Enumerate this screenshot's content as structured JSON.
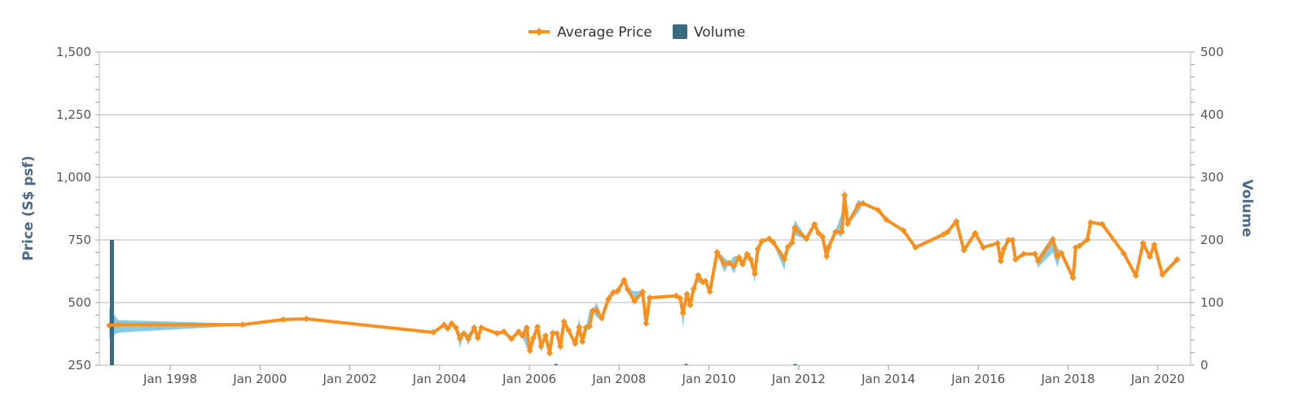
{
  "chart_data": {
    "type": "line",
    "title": "",
    "legend": {
      "position": "top-center",
      "items": [
        {
          "name": "Average Price",
          "color": "#f7901e"
        },
        {
          "name": "Volume",
          "color": "#3a6a80"
        }
      ]
    },
    "x_axis": {
      "type": "datetime",
      "range": [
        1996.42,
        2020.73
      ],
      "ticks": [
        1998,
        2000,
        2002,
        2004,
        2006,
        2008,
        2010,
        2012,
        2014,
        2016,
        2018,
        2020
      ],
      "tick_labels": [
        "Jan 1998",
        "Jan 2000",
        "Jan 2002",
        "Jan 2004",
        "Jan 2006",
        "Jan 2008",
        "Jan 2010",
        "Jan 2012",
        "Jan 2014",
        "Jan 2016",
        "Jan 2018",
        "Jan 2020"
      ]
    },
    "y_axis_left": {
      "title": "Price (S$ psf)",
      "range": [
        250,
        1500
      ],
      "ticks": [
        250,
        500,
        750,
        1000,
        1250,
        1500
      ],
      "tick_labels": [
        "250",
        "500",
        "750",
        "1,000",
        "1,250",
        "1,500"
      ],
      "grid": true
    },
    "y_axis_right": {
      "title": "Volume",
      "range": [
        0,
        500
      ],
      "ticks": [
        0,
        100,
        200,
        300,
        400,
        500
      ],
      "tick_labels": [
        "0",
        "100",
        "200",
        "300",
        "400",
        "500"
      ]
    },
    "colors": {
      "price": "#f7901e",
      "range": "#7cc7df",
      "volume": "#3a6a80",
      "grid": "#cfcfcf"
    },
    "series": [
      {
        "name": "Average Price",
        "type": "line",
        "points": [
          [
            1996.64,
            409
          ],
          [
            1996.84,
            412
          ],
          [
            1999.61,
            412
          ],
          [
            2000.52,
            432
          ],
          [
            2001.03,
            435
          ],
          [
            2003.86,
            381
          ],
          [
            2004.1,
            411
          ],
          [
            2004.18,
            397
          ],
          [
            2004.27,
            417
          ],
          [
            2004.36,
            400
          ],
          [
            2004.45,
            357
          ],
          [
            2004.54,
            377
          ],
          [
            2004.64,
            355
          ],
          [
            2004.77,
            400
          ],
          [
            2004.85,
            359
          ],
          [
            2004.93,
            400
          ],
          [
            2005.28,
            377
          ],
          [
            2005.43,
            384
          ],
          [
            2005.6,
            355
          ],
          [
            2005.76,
            384
          ],
          [
            2005.84,
            368
          ],
          [
            2005.94,
            400
          ],
          [
            2006.01,
            308
          ],
          [
            2006.09,
            359
          ],
          [
            2006.18,
            403
          ],
          [
            2006.26,
            325
          ],
          [
            2006.36,
            368
          ],
          [
            2006.45,
            298
          ],
          [
            2006.52,
            379
          ],
          [
            2006.61,
            377
          ],
          [
            2006.69,
            325
          ],
          [
            2006.77,
            424
          ],
          [
            2006.87,
            390
          ],
          [
            2007.02,
            336
          ],
          [
            2007.11,
            403
          ],
          [
            2007.18,
            344
          ],
          [
            2007.26,
            400
          ],
          [
            2007.34,
            406
          ],
          [
            2007.41,
            468
          ],
          [
            2007.5,
            468
          ],
          [
            2007.61,
            438
          ],
          [
            2007.76,
            514
          ],
          [
            2007.87,
            541
          ],
          [
            2007.97,
            547
          ],
          [
            2008.11,
            590
          ],
          [
            2008.19,
            552
          ],
          [
            2008.34,
            506
          ],
          [
            2008.52,
            543
          ],
          [
            2008.6,
            417
          ],
          [
            2008.68,
            519
          ],
          [
            2009.27,
            527
          ],
          [
            2009.36,
            517
          ],
          [
            2009.42,
            458
          ],
          [
            2009.51,
            534
          ],
          [
            2009.58,
            490
          ],
          [
            2009.66,
            555
          ],
          [
            2009.76,
            609
          ],
          [
            2009.86,
            582
          ],
          [
            2009.92,
            586
          ],
          [
            2010.02,
            544
          ],
          [
            2010.18,
            701
          ],
          [
            2010.34,
            653
          ],
          [
            2010.45,
            658
          ],
          [
            2010.56,
            647
          ],
          [
            2010.67,
            680
          ],
          [
            2010.75,
            653
          ],
          [
            2010.85,
            694
          ],
          [
            2010.93,
            672
          ],
          [
            2011.02,
            615
          ],
          [
            2011.09,
            715
          ],
          [
            2011.18,
            745
          ],
          [
            2011.34,
            755
          ],
          [
            2011.43,
            741
          ],
          [
            2011.68,
            674
          ],
          [
            2011.76,
            723
          ],
          [
            2011.85,
            739
          ],
          [
            2011.91,
            799
          ],
          [
            2012.17,
            755
          ],
          [
            2012.35,
            813
          ],
          [
            2012.44,
            777
          ],
          [
            2012.53,
            763
          ],
          [
            2012.62,
            685
          ],
          [
            2012.67,
            723
          ],
          [
            2012.82,
            782
          ],
          [
            2012.96,
            782
          ],
          [
            2013.02,
            929
          ],
          [
            2013.09,
            815
          ],
          [
            2013.33,
            891
          ],
          [
            2013.43,
            896
          ],
          [
            2013.77,
            869
          ],
          [
            2013.95,
            831
          ],
          [
            2014.33,
            788
          ],
          [
            2014.6,
            720
          ],
          [
            2015.22,
            772
          ],
          [
            2015.31,
            781
          ],
          [
            2015.51,
            824
          ],
          [
            2015.68,
            709
          ],
          [
            2015.93,
            777
          ],
          [
            2016.11,
            720
          ],
          [
            2016.43,
            737
          ],
          [
            2016.5,
            666
          ],
          [
            2016.57,
            715
          ],
          [
            2016.67,
            750
          ],
          [
            2016.76,
            750
          ],
          [
            2016.83,
            672
          ],
          [
            2017.01,
            694
          ],
          [
            2017.26,
            694
          ],
          [
            2017.33,
            666
          ],
          [
            2017.66,
            752
          ],
          [
            2017.76,
            685
          ],
          [
            2017.85,
            698
          ],
          [
            2018.11,
            599
          ],
          [
            2018.17,
            720
          ],
          [
            2018.25,
            726
          ],
          [
            2018.43,
            752
          ],
          [
            2018.5,
            820
          ],
          [
            2018.76,
            813
          ],
          [
            2019.24,
            696
          ],
          [
            2019.51,
            607
          ],
          [
            2019.67,
            737
          ],
          [
            2019.82,
            683
          ],
          [
            2019.92,
            731
          ],
          [
            2020.1,
            611
          ],
          [
            2020.43,
            672
          ]
        ]
      },
      {
        "name": "Price Range",
        "type": "arearange",
        "points": [
          [
            1996.64,
            360,
            480
          ],
          [
            1996.84,
            380,
            430
          ],
          [
            2004.45,
            320,
            380
          ],
          [
            2004.64,
            330,
            375
          ],
          [
            2005.94,
            320,
            405
          ],
          [
            2006.26,
            300,
            340
          ],
          [
            2006.69,
            300,
            360
          ],
          [
            2007.11,
            380,
            440
          ],
          [
            2007.34,
            390,
            470
          ],
          [
            2007.5,
            440,
            500
          ],
          [
            2007.76,
            500,
            530
          ],
          [
            2007.97,
            530,
            560
          ],
          [
            2008.34,
            490,
            545
          ],
          [
            2009.42,
            400,
            470
          ],
          [
            2009.76,
            580,
            620
          ],
          [
            2010.34,
            620,
            680
          ],
          [
            2010.56,
            615,
            685
          ],
          [
            2011.02,
            580,
            640
          ],
          [
            2011.68,
            630,
            690
          ],
          [
            2011.91,
            770,
            830
          ],
          [
            2012.62,
            660,
            700
          ],
          [
            2012.96,
            760,
            860
          ],
          [
            2013.02,
            900,
            960
          ],
          [
            2013.33,
            860,
            910
          ],
          [
            2017.33,
            640,
            680
          ],
          [
            2017.66,
            700,
            770
          ],
          [
            2017.76,
            640,
            720
          ]
        ]
      },
      {
        "name": "Volume",
        "type": "column",
        "axis": "right",
        "points": [
          [
            1996.7,
            200
          ],
          [
            2006.6,
            2
          ],
          [
            2009.5,
            2
          ],
          [
            2011.93,
            2
          ]
        ]
      }
    ]
  }
}
